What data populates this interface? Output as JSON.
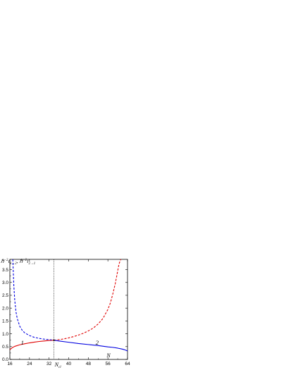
{
  "chart_data": {
    "type": "line",
    "ylabel": "ℏ⁻²τ₁→₂ , ℏ⁻²τ₂→₁",
    "ylabel_parts": {
      "a_main": "ℏ",
      "a_sup": "−2",
      "a_tau": "τ",
      "a_sub": "1→2",
      "sep": ", ",
      "b_main": "ℏ",
      "b_sup": "−2",
      "b_tau": "τ",
      "b_sub": "2→1"
    },
    "xlabel": "N",
    "xlim": [
      16,
      64
    ],
    "ylim": [
      0.0,
      3.9
    ],
    "x_ticks": [
      16,
      24,
      32,
      40,
      48,
      56,
      64
    ],
    "x_tick_labels": [
      "16",
      "24",
      "32",
      "40",
      "48",
      "56",
      "64"
    ],
    "y_ticks": [
      0.0,
      0.5,
      1.0,
      1.5,
      2.0,
      2.5,
      3.0,
      3.5
    ],
    "y_tick_labels": [
      "0.0",
      "0.5",
      "1.0",
      "1.5",
      "2.0",
      "2.5",
      "3.0",
      "3.5"
    ],
    "critical_point": {
      "x": 34,
      "label_main": "N",
      "label_sub": "cl",
      "y": 0.75
    },
    "curve_labels": [
      {
        "text": "1",
        "x": 20.5,
        "y": 0.57
      },
      {
        "text": "2",
        "x": 51,
        "y": 0.58
      }
    ],
    "series": [
      {
        "color": "#e00000",
        "dash": "none",
        "x": [
          16,
          17,
          18,
          20,
          22,
          24,
          26,
          28,
          30,
          32,
          34
        ],
        "y": [
          0.38,
          0.46,
          0.51,
          0.57,
          0.61,
          0.645,
          0.675,
          0.7,
          0.72,
          0.74,
          0.75
        ]
      },
      {
        "color": "#e00000",
        "dash": "3,2",
        "x": [
          34,
          36,
          38,
          40,
          42,
          44,
          46,
          48,
          50,
          52,
          54,
          56,
          57,
          58,
          59,
          60,
          60.5,
          61,
          61.3
        ],
        "y": [
          0.75,
          0.77,
          0.8,
          0.84,
          0.89,
          0.95,
          1.02,
          1.11,
          1.22,
          1.38,
          1.6,
          1.95,
          2.2,
          2.55,
          2.95,
          3.45,
          3.7,
          3.85,
          3.9
        ]
      },
      {
        "color": "#0000e0",
        "dash": "none",
        "x": [
          34,
          36,
          40,
          44,
          48,
          52,
          56,
          58,
          60,
          62,
          63,
          64
        ],
        "y": [
          0.75,
          0.72,
          0.67,
          0.62,
          0.58,
          0.54,
          0.49,
          0.47,
          0.44,
          0.4,
          0.37,
          0.33
        ]
      },
      {
        "color": "#0000e0",
        "dash": "3,2",
        "x": [
          17.2,
          17.4,
          17.6,
          18,
          18.5,
          19,
          20,
          21,
          22,
          24,
          26,
          28,
          30,
          32,
          34
        ],
        "y": [
          3.9,
          3.4,
          2.9,
          2.3,
          1.85,
          1.6,
          1.3,
          1.14,
          1.04,
          0.93,
          0.86,
          0.82,
          0.79,
          0.77,
          0.75
        ]
      }
    ]
  }
}
